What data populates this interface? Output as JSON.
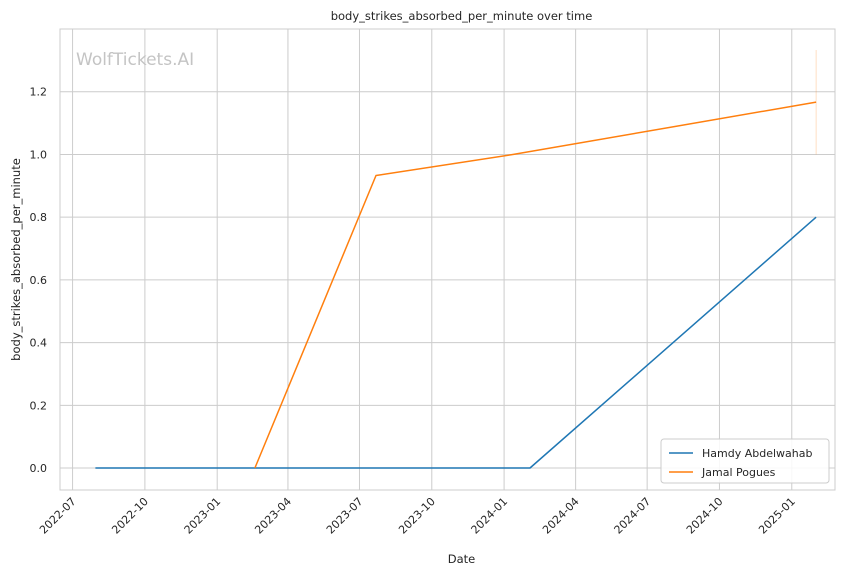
{
  "chart_data": {
    "type": "line",
    "title": "body_strikes_absorbed_per_minute over time",
    "xlabel": "Date",
    "ylabel": "body_strikes_absorbed_per_minute",
    "watermark": "WolfTickets.AI",
    "x_ticks": [
      "2022-07",
      "2022-10",
      "2023-01",
      "2023-04",
      "2023-07",
      "2023-10",
      "2024-01",
      "2024-04",
      "2024-07",
      "2024-10",
      "2025-01"
    ],
    "y_ticks": [
      "0.0",
      "0.2",
      "0.4",
      "0.6",
      "0.8",
      "1.0",
      "1.2"
    ],
    "xlim": [
      "2022-06-15",
      "2025-02-25"
    ],
    "ylim": [
      -0.07,
      1.4
    ],
    "grid": true,
    "legend_position": "lower-right",
    "series": [
      {
        "name": "Hamdy Abdelwahab",
        "color": "#1f77b4",
        "points": [
          {
            "x": "2022-07-30",
            "y": 0.0
          },
          {
            "x": "2024-02-03",
            "y": 0.0
          },
          {
            "x": "2025-02-01",
            "y": 0.8
          }
        ]
      },
      {
        "name": "Jamal Pogues",
        "color": "#ff7f0e",
        "points": [
          {
            "x": "2023-02-18",
            "y": 0.0
          },
          {
            "x": "2023-07-22",
            "y": 0.933
          },
          {
            "x": "2024-01-13",
            "y": 1.0
          },
          {
            "x": "2025-02-01",
            "y": 1.167
          }
        ]
      }
    ],
    "error_bar": {
      "x": "2025-02-01",
      "y_low": 1.0,
      "y_high": 1.333,
      "color": "#ff7f0e"
    }
  }
}
